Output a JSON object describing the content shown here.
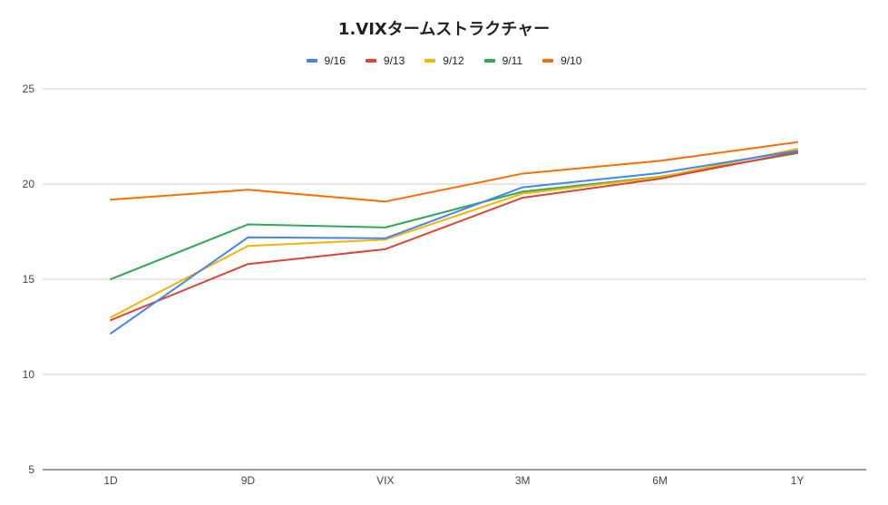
{
  "chart_data": {
    "type": "line",
    "title": "1.VIXタームストラクチャー",
    "categories": [
      "1D",
      "9D",
      "VIX",
      "3M",
      "6M",
      "1Y"
    ],
    "ylim": [
      5,
      25
    ],
    "yticks": [
      5,
      10,
      15,
      20,
      25
    ],
    "grid": true,
    "legend_position": "top",
    "series": [
      {
        "name": "9/16",
        "color": "#4285f4",
        "values": [
          12.15,
          17.2,
          17.15,
          19.83,
          20.58,
          21.75
        ]
      },
      {
        "name": "9/13",
        "color": "#db4437",
        "values": [
          12.85,
          15.8,
          16.58,
          19.28,
          20.28,
          21.68
        ]
      },
      {
        "name": "9/12",
        "color": "#f4b400",
        "values": [
          13.0,
          16.75,
          17.08,
          19.5,
          20.36,
          21.85
        ]
      },
      {
        "name": "9/11",
        "color": "#34a853",
        "values": [
          15.0,
          17.88,
          17.72,
          19.6,
          20.38,
          21.62
        ]
      },
      {
        "name": "9/10",
        "color": "#ff6d01",
        "values": [
          19.18,
          19.7,
          19.08,
          20.55,
          21.22,
          22.2
        ]
      }
    ]
  }
}
